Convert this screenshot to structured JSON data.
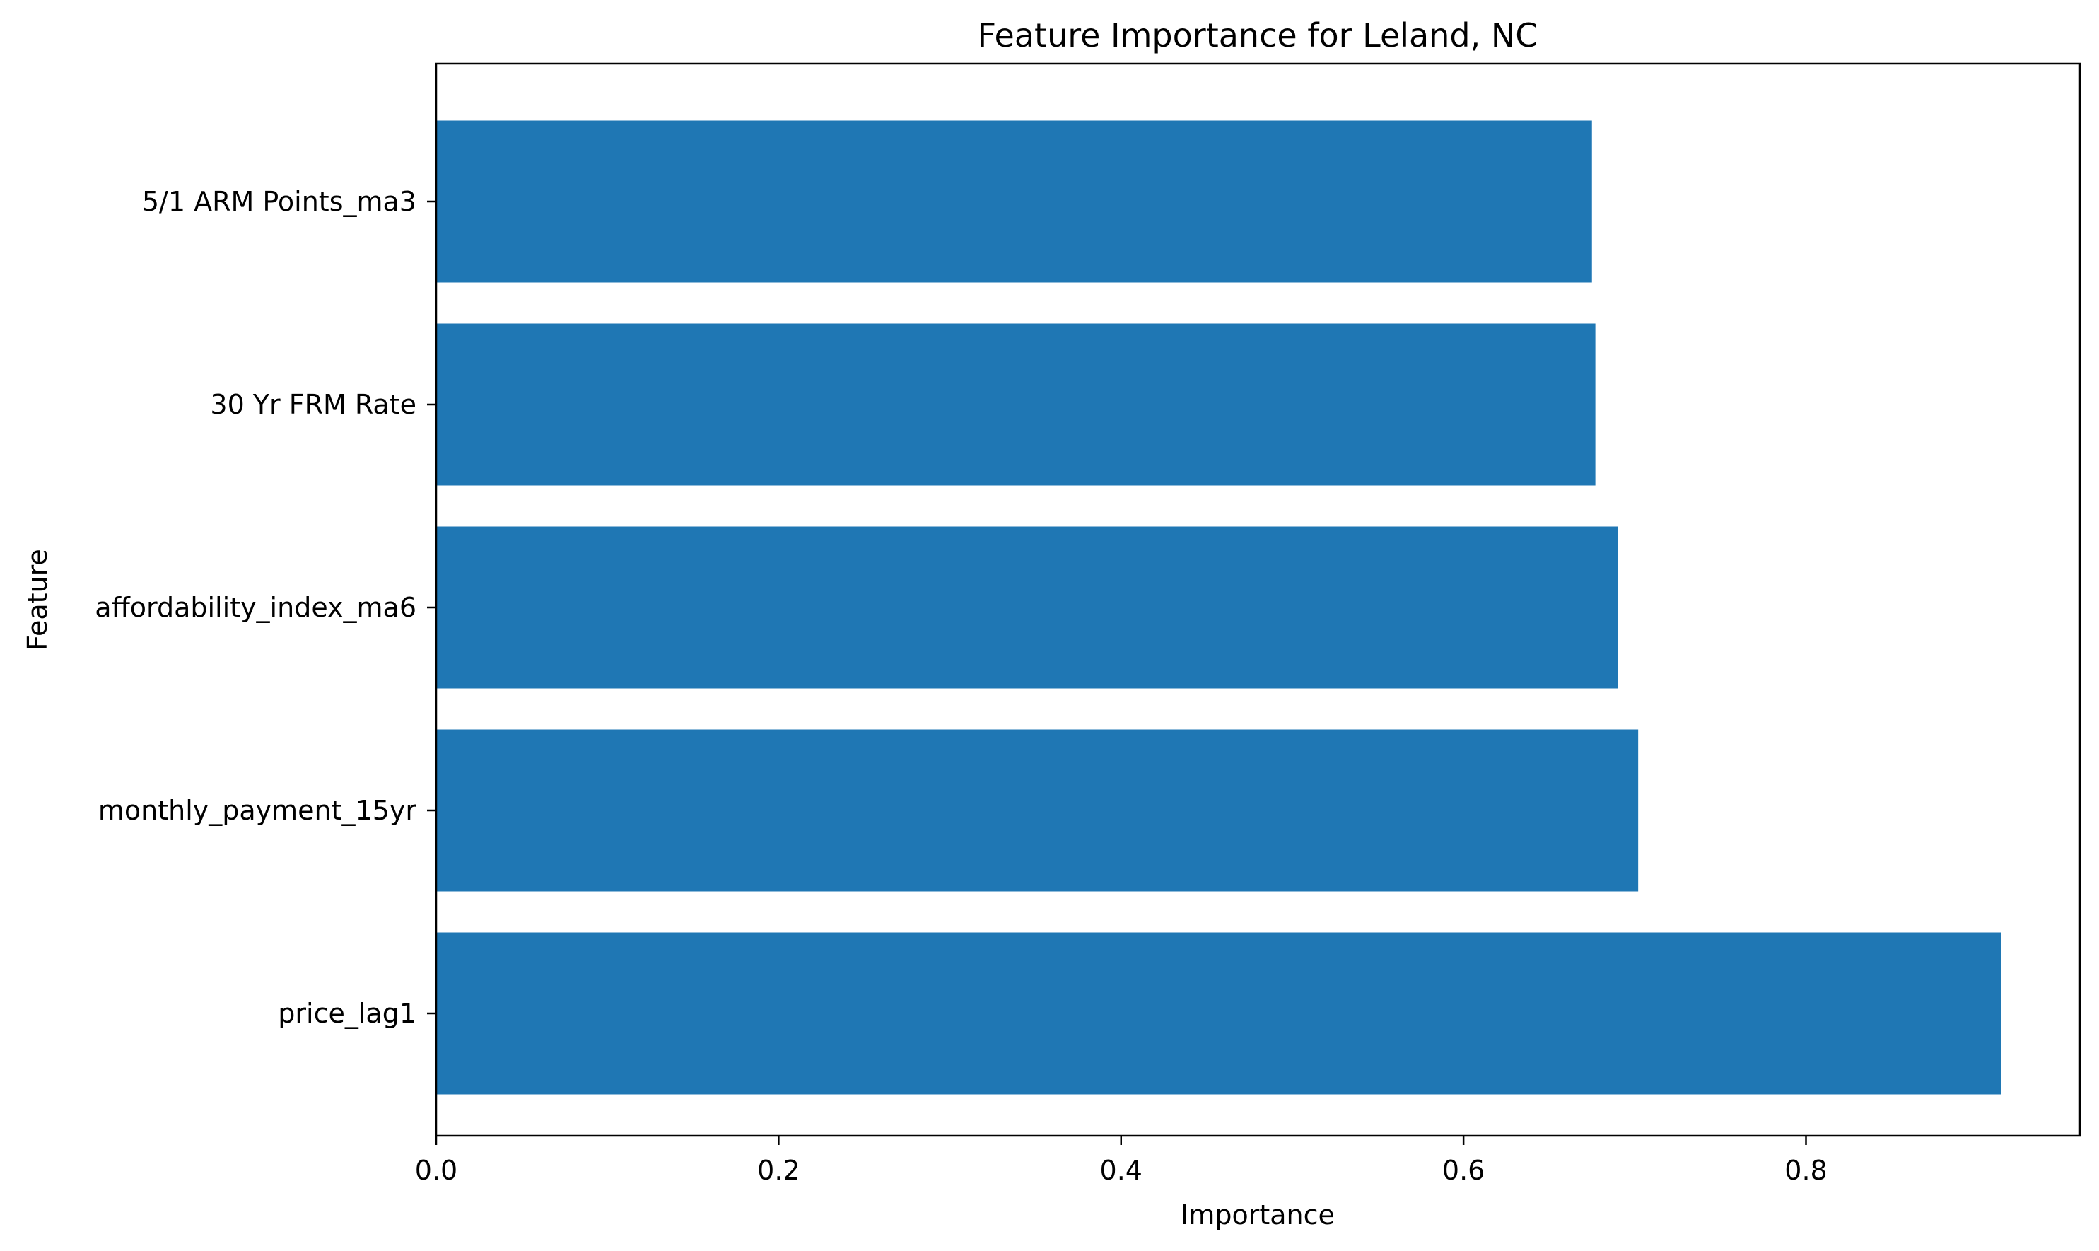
{
  "chart_data": {
    "type": "bar",
    "orientation": "horizontal",
    "title": "Feature Importance for Leland, NC",
    "xlabel": "Importance",
    "ylabel": "Feature",
    "categories": [
      "price_lag1",
      "monthly_payment_15yr",
      "affordability_index_ma6",
      "30 Yr FRM Rate",
      "5/1 ARM Points_ma3"
    ],
    "values": [
      0.914,
      0.702,
      0.69,
      0.677,
      0.675
    ],
    "xlim": [
      0,
      0.96
    ],
    "xticks": [
      0.0,
      0.2,
      0.4,
      0.6,
      0.8
    ],
    "xtick_labels": [
      "0.0",
      "0.2",
      "0.4",
      "0.6",
      "0.8"
    ],
    "grid": false,
    "bar_color": "#1f77b4"
  }
}
